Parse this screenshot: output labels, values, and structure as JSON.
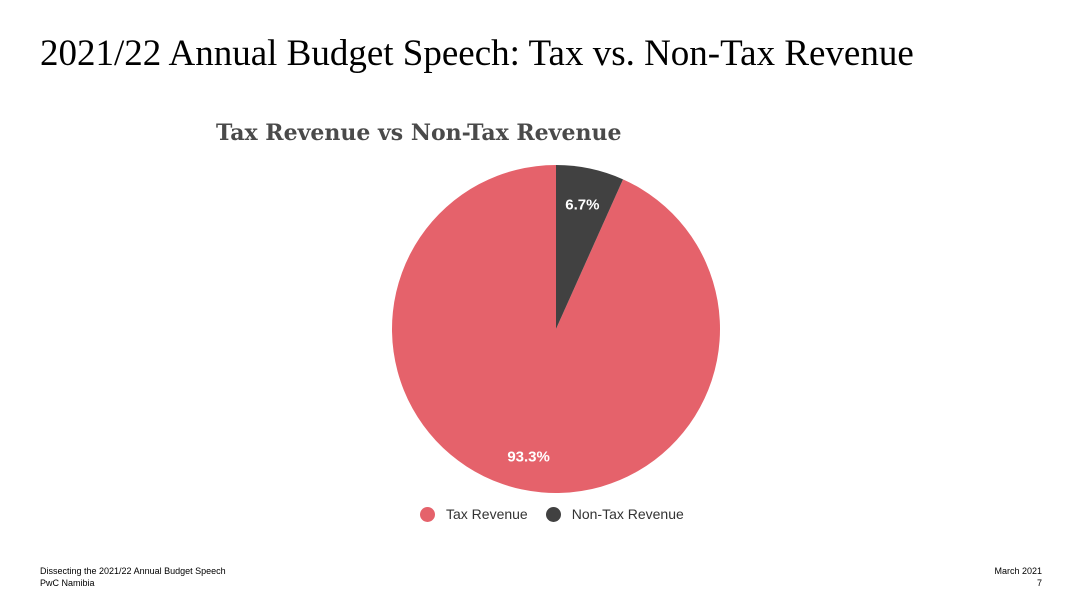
{
  "slide": {
    "title": "2021/22 Annual Budget Speech: Tax vs. Non-Tax Revenue"
  },
  "chart_data": {
    "type": "pie",
    "title": "Tax Revenue vs Non-Tax Revenue",
    "slices": [
      {
        "name": "Tax Revenue",
        "value": 93.3,
        "label": "93.3%",
        "color": "#e5626b"
      },
      {
        "name": "Non-Tax Revenue",
        "value": 6.7,
        "label": "6.7%",
        "color": "#414141"
      }
    ],
    "legend_position": "bottom",
    "start_angle": "12 o'clock",
    "direction": "counter-clockwise"
  },
  "footer": {
    "left_line1": "Dissecting the 2021/22 Annual Budget Speech",
    "left_line2": "PwC Namibia",
    "right_line1": "March 2021",
    "right_line2": "7"
  }
}
